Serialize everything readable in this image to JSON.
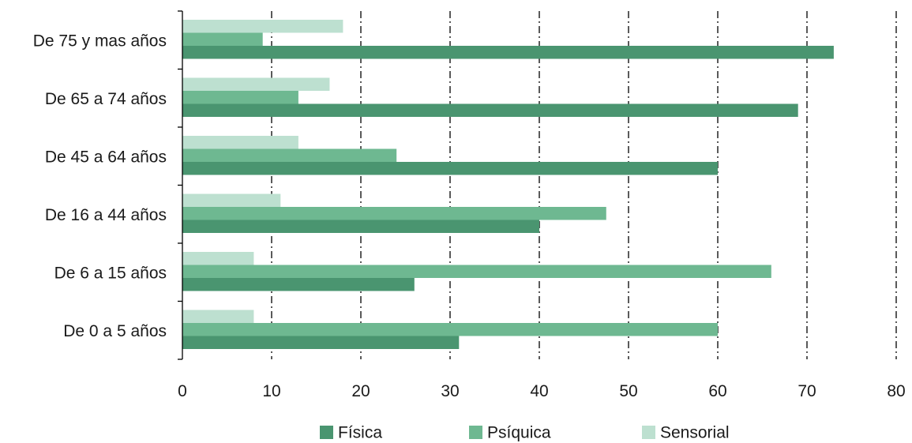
{
  "chart_data": {
    "type": "bar",
    "orientation": "horizontal",
    "categories": [
      "De 75 y mas años",
      "De 65 a 74 años",
      "De 45 a 64 años",
      "De 16 a 44 años",
      "De 6 a 15 años",
      "De 0 a 5 años"
    ],
    "series": [
      {
        "name": "Física",
        "color": "#4a9570",
        "values": [
          73,
          69,
          60,
          40,
          26,
          31
        ]
      },
      {
        "name": "Psíquica",
        "color": "#6eb891",
        "values": [
          9,
          13,
          24,
          47.5,
          66,
          60
        ]
      },
      {
        "name": "Sensorial",
        "color": "#bde0d0",
        "values": [
          18,
          16.5,
          13,
          11,
          8,
          8
        ]
      }
    ],
    "xlim": [
      0,
      80
    ],
    "xticks": [
      0,
      10,
      20,
      30,
      40,
      50,
      60,
      70,
      80
    ],
    "grid": "vertical dash-dot",
    "legend": "bottom"
  }
}
